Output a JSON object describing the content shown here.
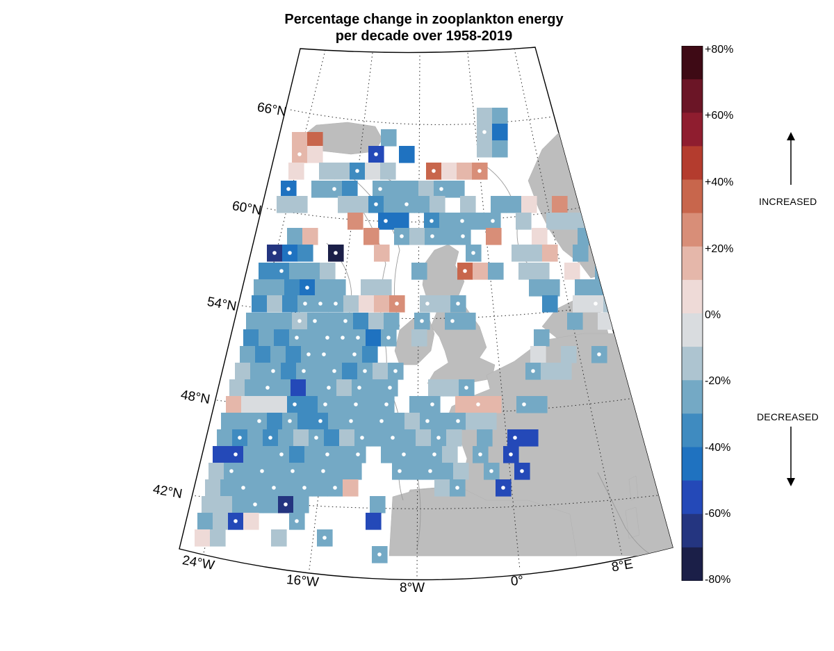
{
  "title": {
    "line1": "Percentage change in zooplankton energy",
    "line2": "per decade over 1958-2019"
  },
  "latitude_labels": [
    "66°N",
    "60°N",
    "54°N",
    "48°N",
    "42°N"
  ],
  "longitude_labels": [
    "24°W",
    "16°W",
    "8°W",
    "0°",
    "8°E"
  ],
  "colorbar": {
    "tick_labels": [
      "+80%",
      "+60%",
      "+40%",
      "+20%",
      "0%",
      "-20%",
      "-40%",
      "-60%",
      "-80%"
    ],
    "range": [
      -80,
      80
    ],
    "colors_top_to_bottom": [
      "#3e0a15",
      "#6b1526",
      "#8f1d2f",
      "#b43c2e",
      "#c8664c",
      "#d88e78",
      "#e5b7aa",
      "#eedad7",
      "#d9dcdf",
      "#adc4d0",
      "#74a9c5",
      "#3f8bc0",
      "#1f72c0",
      "#2449b8",
      "#243580",
      "#1b1f48"
    ]
  },
  "annotations": {
    "increased": "INCREASED",
    "decreased": "DECREASED"
  },
  "colors": {
    "land": "#bdbdbd",
    "contour": "#999999",
    "no_change": "#d9dcdf"
  }
}
